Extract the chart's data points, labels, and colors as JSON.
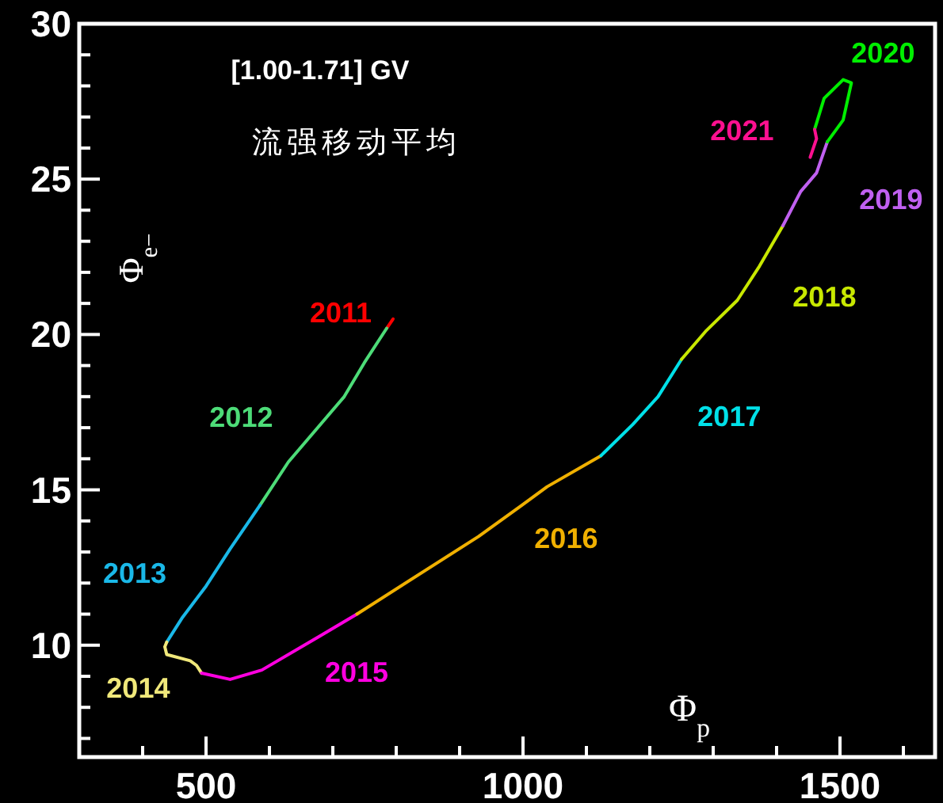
{
  "chart_data": {
    "type": "line",
    "title": "[1.00-1.71] GV",
    "subtitle": "流强移动平均",
    "xlabel": "Φ$_{p}$",
    "ylabel": "Φ$_{e−}$",
    "xlim": [
      300,
      1650
    ],
    "ylim": [
      6.4,
      30
    ],
    "xticks": [
      {
        "value": 400,
        "label": null
      },
      500,
      {
        "value": 600,
        "label": null
      },
      {
        "value": 700,
        "label": null
      },
      {
        "value": 800,
        "label": null
      },
      {
        "value": 900,
        "label": null
      },
      1000,
      {
        "value": 1100,
        "label": null
      },
      {
        "value": 1200,
        "label": null
      },
      {
        "value": 1300,
        "label": null
      },
      {
        "value": 1400,
        "label": null
      },
      1500,
      {
        "value": 1600,
        "label": null
      }
    ],
    "yticks": [
      {
        "value": 7,
        "label": null
      },
      {
        "value": 8,
        "label": null
      },
      {
        "value": 9,
        "label": null
      },
      10,
      {
        "value": 11,
        "label": null
      },
      {
        "value": 12,
        "label": null
      },
      {
        "value": 13,
        "label": null
      },
      {
        "value": 14,
        "label": null
      },
      15,
      {
        "value": 16,
        "label": null
      },
      {
        "value": 17,
        "label": null
      },
      {
        "value": 18,
        "label": null
      },
      {
        "value": 19,
        "label": null
      },
      20,
      {
        "value": 21,
        "label": null
      },
      {
        "value": 22,
        "label": null
      },
      {
        "value": 23,
        "label": null
      },
      {
        "value": 24,
        "label": null
      },
      25,
      {
        "value": 26,
        "label": null
      },
      {
        "value": 27,
        "label": null
      },
      {
        "value": 28,
        "label": null
      },
      {
        "value": 29,
        "label": null
      },
      30
    ],
    "grid": false,
    "legend": false,
    "marker": "none",
    "line_style": "solid",
    "series": [
      {
        "name": "2011",
        "color": "#ff0000",
        "x": [
          795,
          785
        ],
        "values": [
          20.5,
          20.2
        ]
      },
      {
        "name": "2012",
        "color": "#4ddc78",
        "x": [
          785,
          750,
          718,
          630,
          585
        ],
        "values": [
          20.2,
          19.1,
          18.0,
          15.9,
          14.5
        ]
      },
      {
        "name": "2013",
        "color": "#1ab8e8",
        "x": [
          585,
          538,
          500,
          463,
          438
        ],
        "values": [
          14.5,
          13.1,
          11.9,
          10.9,
          10.1
        ]
      },
      {
        "name": "2014",
        "color": "#f0e87a",
        "x": [
          438,
          435,
          438,
          475,
          485,
          493
        ],
        "values": [
          10.1,
          9.95,
          9.7,
          9.5,
          9.35,
          9.1
        ]
      },
      {
        "name": "2015",
        "color": "#ff00e0",
        "x": [
          493,
          538,
          588,
          680,
          738
        ],
        "values": [
          9.1,
          8.9,
          9.2,
          10.3,
          11.0
        ]
      },
      {
        "name": "2016",
        "color": "#f0b000",
        "x": [
          738,
          930,
          998,
          1038,
          1123
        ],
        "values": [
          11.0,
          13.5,
          14.5,
          15.1,
          16.1
        ]
      },
      {
        "name": "2017",
        "color": "#00e0e8",
        "x": [
          1123,
          1173,
          1213,
          1250
        ],
        "values": [
          16.1,
          17.1,
          18.0,
          19.2
        ]
      },
      {
        "name": "2018",
        "color": "#c8e800",
        "x": [
          1250,
          1288,
          1338,
          1373,
          1410
        ],
        "values": [
          19.2,
          20.1,
          21.1,
          22.2,
          23.5
        ]
      },
      {
        "name": "2019",
        "color": "#c060f0",
        "x": [
          1410,
          1438,
          1463,
          1480
        ],
        "values": [
          23.5,
          24.6,
          25.2,
          26.2
        ]
      },
      {
        "name": "2020",
        "color": "#00ee00",
        "x": [
          1480,
          1505,
          1518,
          1505,
          1475,
          1460
        ],
        "values": [
          26.2,
          26.9,
          28.1,
          28.2,
          27.6,
          26.6
        ]
      },
      {
        "name": "2021",
        "color": "#ff1090",
        "x": [
          1460,
          1463,
          1453
        ],
        "values": [
          26.6,
          26.3,
          25.7
        ]
      }
    ]
  }
}
